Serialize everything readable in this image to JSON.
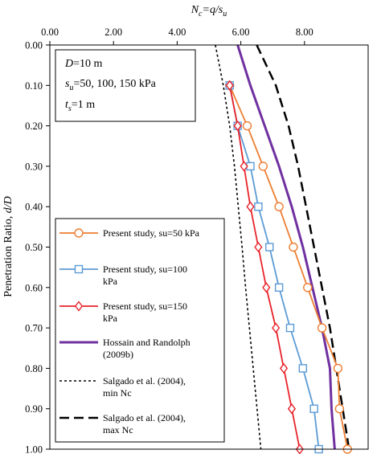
{
  "chart_data": {
    "type": "line",
    "xlabel": "N_c=q/s_u",
    "ylabel": "Penetration Ratio, d/D",
    "xlim": [
      0,
      10
    ],
    "ylim": [
      0,
      1
    ],
    "y_inverted": true,
    "x_axis_position": "top",
    "x_ticks": [
      "0.00",
      "2.00",
      "4.00",
      "6.00",
      "8.00"
    ],
    "y_ticks": [
      "0.00",
      "0.10",
      "0.20",
      "0.30",
      "0.40",
      "0.50",
      "0.60",
      "0.70",
      "0.80",
      "0.90",
      "1.00"
    ],
    "grid": false,
    "legend_position": "bottom-left",
    "annotation": {
      "lines": [
        {
          "italic": "D",
          "rest": "=10 m"
        },
        {
          "italic": "s",
          "sub": "u",
          "rest": "=50, 100, 150 kPa"
        },
        {
          "italic": "t",
          "sub": "s",
          "rest": "=1 m"
        }
      ]
    },
    "series": [
      {
        "name": "Present study, su=50 kPa",
        "color": "#ED7D31",
        "marker": "circle",
        "x": [
          5.65,
          6.2,
          6.7,
          7.2,
          7.65,
          8.1,
          8.55,
          9.05,
          9.1,
          9.35
        ],
        "y": [
          0.1,
          0.2,
          0.3,
          0.4,
          0.5,
          0.6,
          0.7,
          0.8,
          0.9,
          1.0
        ]
      },
      {
        "name": "Present study, su=100 kPa",
        "color": "#5B9BD5",
        "marker": "square",
        "x": [
          5.65,
          5.9,
          6.3,
          6.55,
          6.9,
          7.2,
          7.55,
          7.95,
          8.3,
          8.45
        ],
        "y": [
          0.1,
          0.2,
          0.3,
          0.4,
          0.5,
          0.6,
          0.7,
          0.8,
          0.9,
          1.0
        ]
      },
      {
        "name": "Present study, su=150 kPa",
        "color": "#E8232A",
        "marker": "diamond",
        "x": [
          5.65,
          5.9,
          6.1,
          6.3,
          6.55,
          6.8,
          7.1,
          7.35,
          7.6,
          7.85
        ],
        "y": [
          0.1,
          0.2,
          0.3,
          0.4,
          0.5,
          0.6,
          0.7,
          0.8,
          0.9,
          1.0
        ]
      },
      {
        "name": "Hossain and Randolph (2009b)",
        "color": "#7030A0",
        "style": "solid",
        "x": [
          5.9,
          6.3,
          6.75,
          7.2,
          7.6,
          7.95,
          8.25,
          8.55,
          8.8,
          8.85,
          8.95
        ],
        "y": [
          0.0,
          0.1,
          0.2,
          0.3,
          0.4,
          0.5,
          0.6,
          0.7,
          0.8,
          0.9,
          1.0
        ]
      },
      {
        "name": "Salgado et al. (2004), min Nc",
        "color": "#000000",
        "style": "dotted",
        "x": [
          5.2,
          5.45,
          5.65,
          5.8,
          5.92,
          6.04,
          6.15,
          6.27,
          6.39,
          6.51,
          6.63
        ],
        "y": [
          0.0,
          0.1,
          0.2,
          0.3,
          0.4,
          0.5,
          0.6,
          0.7,
          0.8,
          0.9,
          1.0
        ]
      },
      {
        "name": "Salgado et al. (2004), max Nc",
        "color": "#000000",
        "style": "dashed",
        "x": [
          6.5,
          7.1,
          7.5,
          7.8,
          8.05,
          8.3,
          8.55,
          8.8,
          9.0,
          9.2,
          9.4
        ],
        "y": [
          0.0,
          0.1,
          0.2,
          0.3,
          0.4,
          0.5,
          0.6,
          0.7,
          0.8,
          0.9,
          1.0
        ]
      }
    ]
  }
}
